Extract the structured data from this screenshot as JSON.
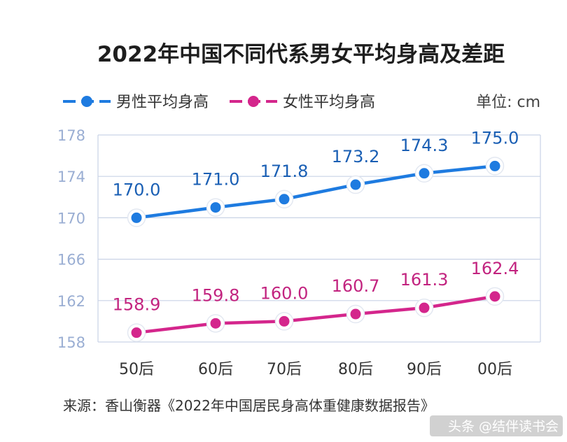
{
  "chart_data": {
    "type": "line",
    "title": "2022年中国不同代系男女平均身高及差距",
    "unit": "单位: cm",
    "categories": [
      "50后",
      "60后",
      "70后",
      "80后",
      "90后",
      "00后"
    ],
    "series": [
      {
        "name": "男性平均身高",
        "color": "#1e7be0",
        "values": [
          170.0,
          171.0,
          171.8,
          173.2,
          174.3,
          175.0
        ]
      },
      {
        "name": "女性平均身高",
        "color": "#d4268c",
        "values": [
          158.9,
          159.8,
          160.0,
          160.7,
          161.3,
          162.4
        ]
      }
    ],
    "yticks": [
      178,
      174,
      170,
      166,
      162,
      158
    ],
    "ylim": [
      158,
      178
    ],
    "grid": true,
    "legend": "top-left"
  },
  "source": "来源：香山衡器《2022年中国居民身高体重健康数据报告》",
  "watermark": "头条 @结伴读书会",
  "colors": {
    "grid": "#c9d3e6",
    "marker_ring": "#ffffff"
  }
}
